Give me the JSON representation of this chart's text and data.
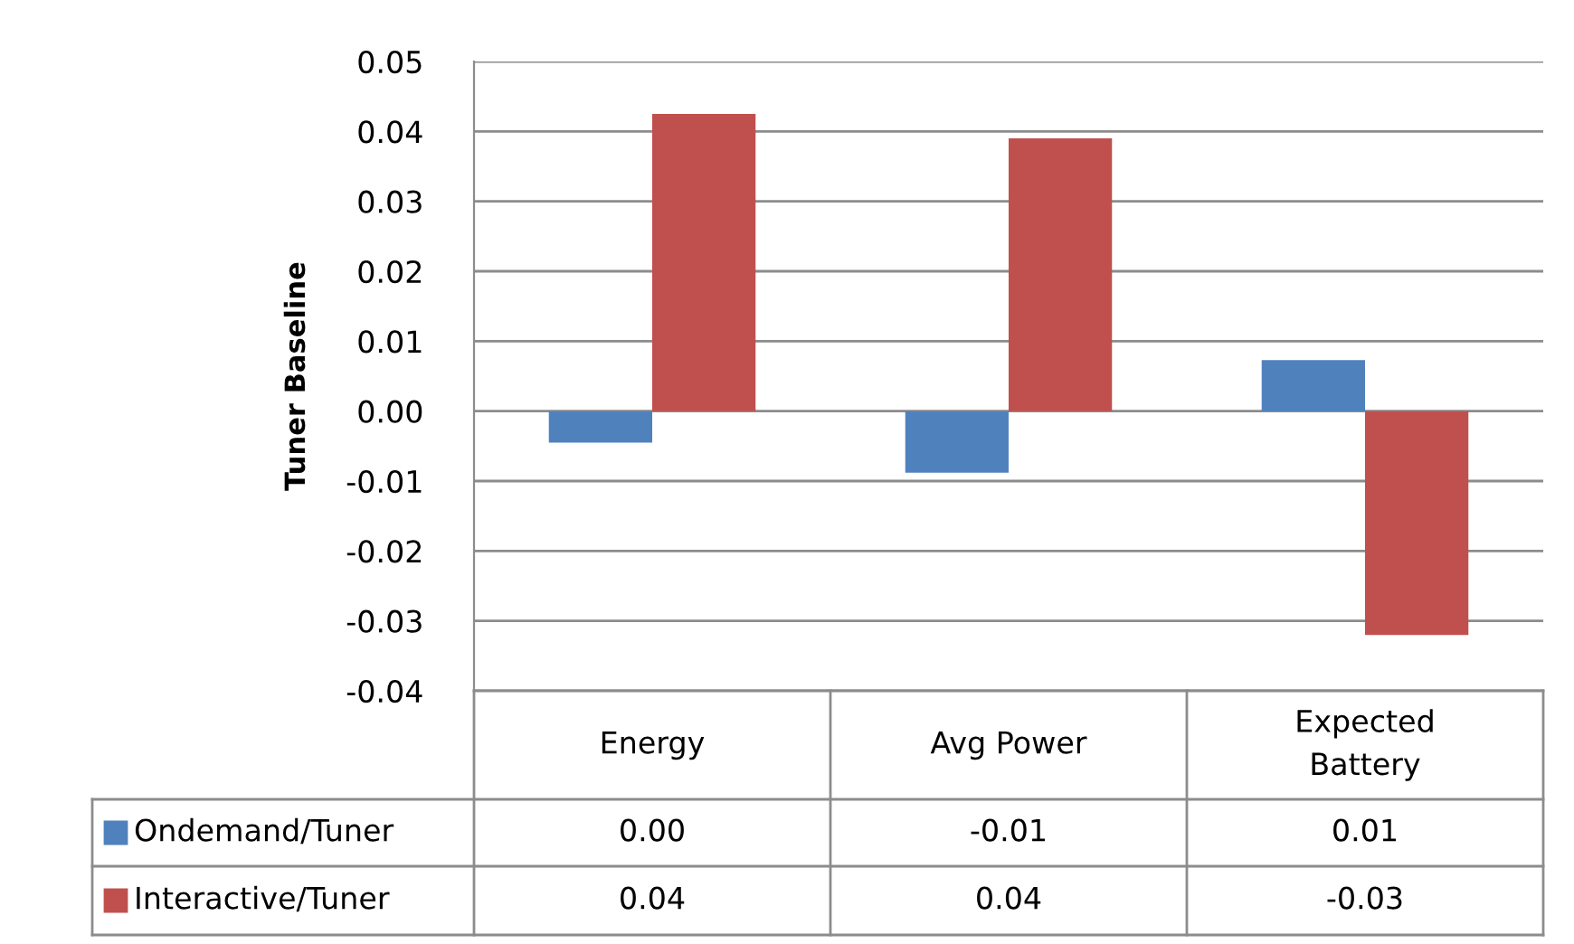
{
  "chart_data": {
    "type": "bar",
    "ylabel": "Tuner Baseline",
    "categories": [
      "Energy",
      "Avg Power",
      "Expected\nBattery"
    ],
    "series": [
      {
        "name": "Ondemand/Tuner",
        "color": "#4f81bd",
        "values": [
          -0.0045,
          -0.0088,
          0.0073
        ],
        "value_labels": [
          "0.00",
          "-0.01",
          "0.01"
        ]
      },
      {
        "name": "Interactive/Tuner",
        "color": "#c0504d",
        "values": [
          0.0425,
          0.039,
          -0.032
        ],
        "value_labels": [
          "0.04",
          "0.04",
          "-0.03"
        ]
      }
    ],
    "ylim": [
      -0.04,
      0.05
    ],
    "yticks": [
      -0.04,
      -0.03,
      -0.02,
      -0.01,
      {
        "value": 0,
        "label": "0.00"
      },
      0.01,
      0.02,
      0.03,
      0.04,
      0.05
    ],
    "grid": "y",
    "legend": "bottom left"
  }
}
